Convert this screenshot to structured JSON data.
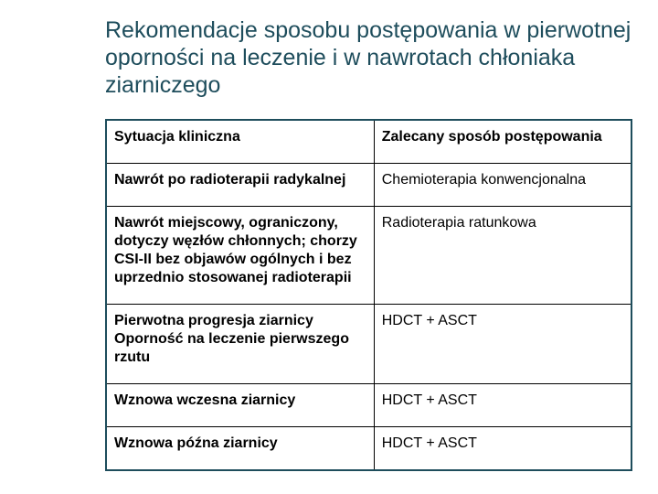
{
  "title": "Rekomendacje sposobu postępowania w pierwotnej oporności na leczenie i w nawrotach chłoniaka ziarniczego",
  "table": {
    "headers": {
      "col1": "Sytuacja kliniczna",
      "col2": "Zalecany sposób postępowania"
    },
    "rows": [
      {
        "c1": "Nawrót po radioterapii radykalnej",
        "c1bold": true,
        "c2": "Chemioterapia konwencjonalna",
        "c2bold": false
      },
      {
        "c1": "Nawrót miejscowy, ograniczony, dotyczy węzłów chłonnych; chorzy CSI-II bez objawów ogólnych i bez uprzednio stosowanej radioterapii",
        "c1bold": true,
        "c2": "Radioterapia ratunkowa",
        "c2bold": false
      },
      {
        "c1": "Pierwotna progresja ziarnicy Oporność na leczenie pierwszego rzutu",
        "c1bold": true,
        "c2": "HDCT + ASCT",
        "c2bold": false
      },
      {
        "c1": "Wznowa wczesna ziarnicy",
        "c1bold": true,
        "c2": "HDCT + ASCT",
        "c2bold": false
      },
      {
        "c1": "Wznowa późna ziarnicy",
        "c1bold": true,
        "c2": "HDCT + ASCT",
        "c2bold": false
      }
    ]
  },
  "colors": {
    "title": "#1e4d5c",
    "tableBorder": "#1e4d5c",
    "cellBorder": "#000000",
    "text": "#000000",
    "background": "#ffffff"
  }
}
